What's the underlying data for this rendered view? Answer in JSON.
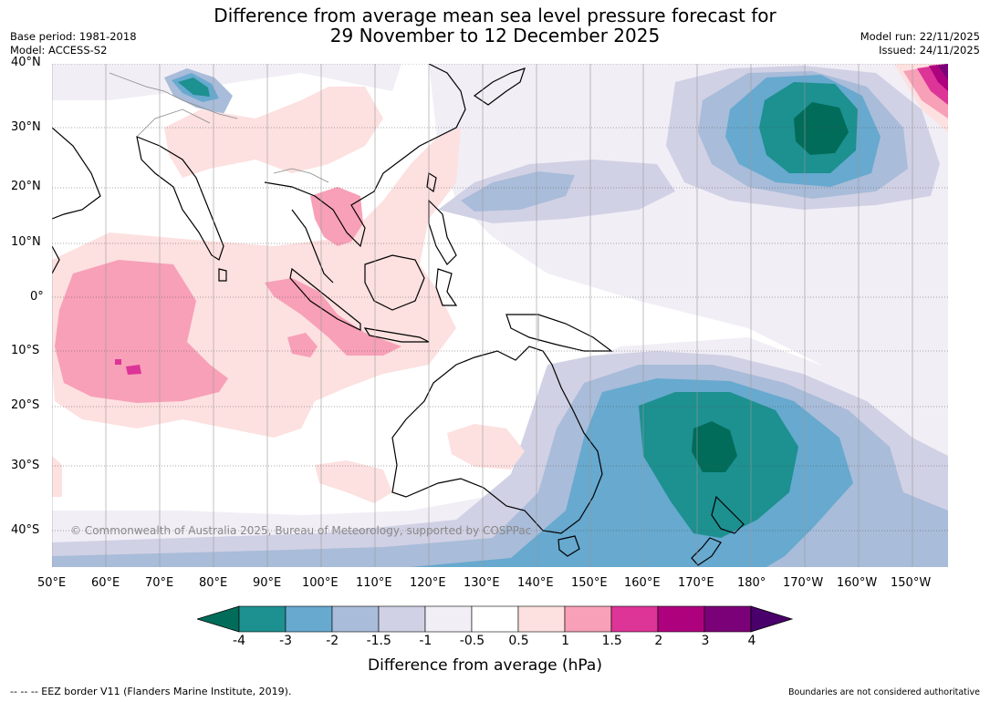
{
  "title": {
    "line1": "Difference from average mean sea level pressure forecast for",
    "line2": "29 November to 12 December 2025"
  },
  "meta_left": {
    "base_period": "Base period: 1981-2018",
    "model": "Model: ACCESS-S2"
  },
  "meta_right": {
    "model_run": "Model run: 22/11/2025",
    "issued": "Issued: 24/11/2025"
  },
  "lat_labels": [
    "40°N",
    "30°N",
    "20°N",
    "10°N",
    "0°",
    "10°S",
    "20°S",
    "30°S",
    "40°S"
  ],
  "lon_labels": [
    "50°E",
    "60°E",
    "70°E",
    "80°E",
    "90°E",
    "100°E",
    "110°E",
    "120°E",
    "130°E",
    "140°E",
    "150°E",
    "160°E",
    "170°E",
    "180°",
    "170°W",
    "160°W",
    "150°W"
  ],
  "copyright": "© Commonwealth of Australia 2025, Bureau of Meteorology, supported by COSPPac",
  "colorbar": {
    "ticks": [
      "-4",
      "-3",
      "-2",
      "-1.5",
      "-1",
      "-0.5",
      "0.5",
      "1",
      "1.5",
      "2",
      "3",
      "4"
    ],
    "colors": [
      "#1d9090",
      "#67a9cf",
      "#a9bcd9",
      "#d1d1e5",
      "#f1eef6",
      "#ffffff",
      "#fde0e0",
      "#f7a0b7",
      "#dd3497",
      "#ae017e",
      "#7a0177"
    ],
    "low_extend_color": "#016c59",
    "high_extend_color": "#49006a",
    "label": "Difference from average (hPa)"
  },
  "footer": {
    "eez": "--  --  -- EEZ border V11 (Flanders Marine Institute, 2019).",
    "boundaries": "Boundaries are not considered authoritative"
  }
}
